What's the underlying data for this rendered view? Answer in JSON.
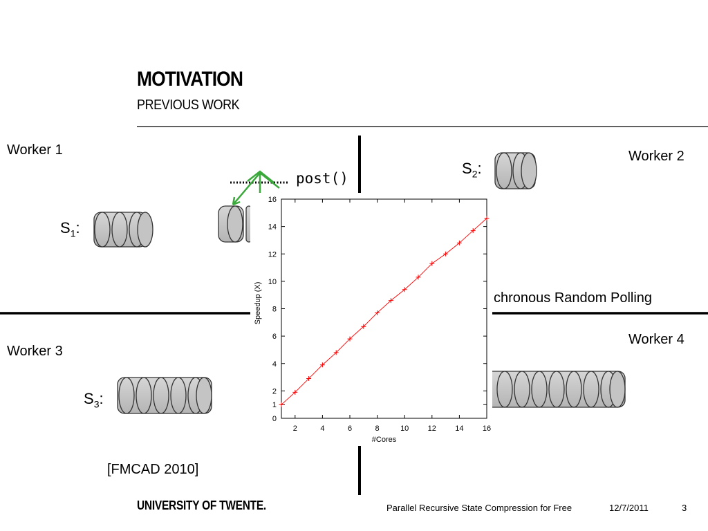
{
  "header": {
    "title": "MOTIVATION",
    "subtitle": "PREVIOUS WORK"
  },
  "workers": {
    "w1": "Worker 1",
    "w2": "Worker 2",
    "w3": "Worker 3",
    "w4": "Worker 4"
  },
  "stacks": {
    "s1": {
      "label": "S",
      "sub": "1",
      "suffix": ":"
    },
    "s2": {
      "label": "S",
      "sub": "2",
      "suffix": ":"
    },
    "s3": {
      "label": "S",
      "sub": "3",
      "suffix": ":"
    }
  },
  "post_label": "post()",
  "polling_text": "chronous Random Polling",
  "citation": "[FMCAD 2010]",
  "footer": {
    "university": "UNIVERSITY OF TWENTE.",
    "presentation_title": "Parallel Recursive State Compression for Free",
    "date": "12/7/2011",
    "page": "3"
  },
  "colors": {
    "series": "#ff0000",
    "arrow": "#2fa42f",
    "disk_fill": "#c8c8c8",
    "rule": "#000000"
  },
  "chart_data": {
    "type": "line",
    "xlabel": "#Cores",
    "ylabel": "Speedup (X)",
    "xlim": [
      1,
      16
    ],
    "ylim": [
      0,
      16
    ],
    "xticks": [
      2,
      4,
      6,
      8,
      10,
      12,
      14,
      16
    ],
    "yticks": [
      0,
      1,
      2,
      4,
      6,
      8,
      10,
      12,
      14,
      16
    ],
    "grid": false,
    "series": [
      {
        "color": "#ff0000",
        "marker": "plus",
        "x": [
          1,
          2,
          3,
          4,
          5,
          6,
          7,
          8,
          9,
          10,
          11,
          12,
          13,
          14,
          15,
          16
        ],
        "y": [
          1.0,
          1.9,
          2.9,
          3.9,
          4.8,
          5.8,
          6.7,
          7.7,
          8.6,
          9.4,
          10.3,
          11.3,
          12.0,
          12.8,
          13.7,
          14.6
        ]
      }
    ]
  }
}
